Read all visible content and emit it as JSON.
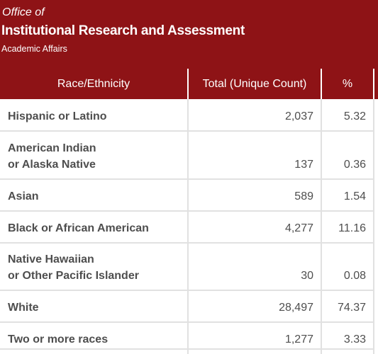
{
  "header": {
    "office_of": "Office of",
    "title": "Institutional Research and Assessment",
    "subtitle": "Academic Affairs"
  },
  "table": {
    "columns": [
      "Race/Ethnicity",
      "Total (Unique Count)",
      "%"
    ],
    "rows": [
      {
        "label_lines": [
          "Hispanic or Latino"
        ],
        "total": "2,037",
        "pct": "5.32"
      },
      {
        "label_lines": [
          "American Indian",
          "or Alaska Native"
        ],
        "total": "137",
        "pct": "0.36"
      },
      {
        "label_lines": [
          "Asian"
        ],
        "total": "589",
        "pct": "1.54"
      },
      {
        "label_lines": [
          "Black or African American"
        ],
        "total": "4,277",
        "pct": "11.16"
      },
      {
        "label_lines": [
          "Native Hawaiian",
          "or Other Pacific Islander"
        ],
        "total": "30",
        "pct": "0.08"
      },
      {
        "label_lines": [
          "White"
        ],
        "total": "28,497",
        "pct": "74.37"
      },
      {
        "label_lines": [
          "Two or more races"
        ],
        "total": "1,277",
        "pct": "3.33"
      }
    ]
  }
}
